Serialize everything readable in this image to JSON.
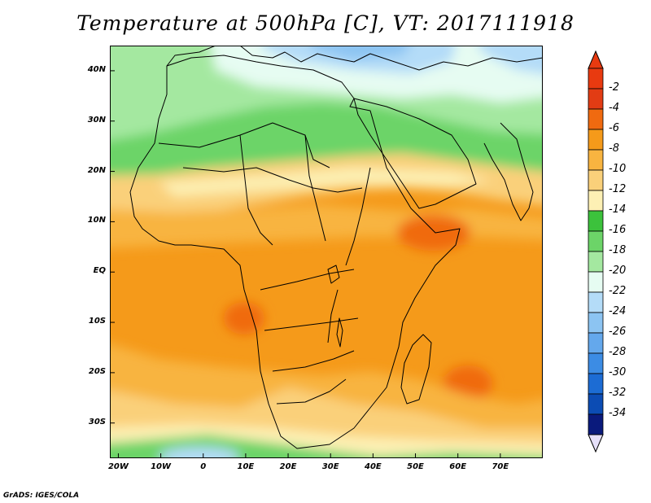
{
  "title": "Temperature at 500hPa [C], VT: 2017111918",
  "credit": "GrADS: IGES/COLA",
  "map": {
    "lon_range": [
      -22,
      80
    ],
    "lat_range": [
      -37,
      45
    ],
    "lat_ticks": [
      {
        "value": 40,
        "label": "40N"
      },
      {
        "value": 30,
        "label": "30N"
      },
      {
        "value": 20,
        "label": "20N"
      },
      {
        "value": 10,
        "label": "10N"
      },
      {
        "value": 0,
        "label": "EQ"
      },
      {
        "value": -10,
        "label": "10S"
      },
      {
        "value": -20,
        "label": "20S"
      },
      {
        "value": -30,
        "label": "30S"
      }
    ],
    "lon_ticks": [
      {
        "value": -20,
        "label": "20W"
      },
      {
        "value": -10,
        "label": "10W"
      },
      {
        "value": 0,
        "label": "0"
      },
      {
        "value": 10,
        "label": "10E"
      },
      {
        "value": 20,
        "label": "20E"
      },
      {
        "value": 30,
        "label": "30E"
      },
      {
        "value": 40,
        "label": "40E"
      },
      {
        "value": 50,
        "label": "50E"
      },
      {
        "value": 60,
        "label": "60E"
      },
      {
        "value": 70,
        "label": "70E"
      }
    ]
  },
  "colorbar": {
    "labels": [
      "-2",
      "-4",
      "-6",
      "-8",
      "-10",
      "-12",
      "-14",
      "-16",
      "-18",
      "-20",
      "-22",
      "-24",
      "-26",
      "-28",
      "-30",
      "-32",
      "-34"
    ],
    "colors": [
      "#e23c14",
      "#f06a10",
      "#f59a1a",
      "#f8b440",
      "#fad07a",
      "#fdf0b4",
      "#3cc23c",
      "#6cd468",
      "#a4e8a0",
      "#e6fcf2",
      "#b4dcf8",
      "#8cc4f2",
      "#64a8ec",
      "#3c8ce4",
      "#1c6cd4",
      "#0c4cb4",
      "#0a1a7c"
    ],
    "top_color": "#e83a10",
    "bottom_color": "#e6e0fa"
  }
}
